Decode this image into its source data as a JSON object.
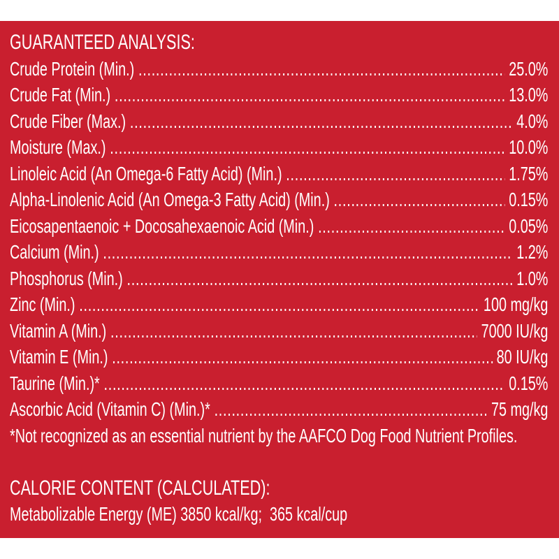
{
  "colors": {
    "panel": "#c91f2f",
    "text": "#ffffff"
  },
  "guaranteed_analysis": {
    "heading": "GUARANTEED ANALYSIS:",
    "rows": [
      {
        "label": "Crude Protein (Min.)",
        "value": "25.0%"
      },
      {
        "label": "Crude Fat (Min.)",
        "value": "13.0%"
      },
      {
        "label": "Crude Fiber (Max.)",
        "value": "4.0%"
      },
      {
        "label": "Moisture (Max.)",
        "value": "10.0%"
      },
      {
        "label": "Linoleic Acid (An Omega-6 Fatty Acid) (Min.)",
        "value": "1.75%"
      },
      {
        "label": "Alpha-Linolenic Acid (An Omega-3 Fatty Acid) (Min.)",
        "value": "0.15%"
      },
      {
        "label": "Eicosapentaenoic + Docosahexaenoic Acid (Min.)",
        "value": "0.05%"
      },
      {
        "label": "Calcium (Min.)",
        "value": "1.2%"
      },
      {
        "label": "Phosphorus (Min.)",
        "value": "1.0%"
      },
      {
        "label": "Zinc (Min.)",
        "value": "100 mg/kg"
      },
      {
        "label": "Vitamin A (Min.)",
        "value": "7000 IU/kg"
      },
      {
        "label": "Vitamin E (Min.)",
        "value": "80 IU/kg"
      },
      {
        "label": "Taurine (Min.)*",
        "value": "0.15%"
      },
      {
        "label": "Ascorbic Acid (Vitamin C) (Min.)*",
        "value": "75 mg/kg"
      }
    ],
    "footnote": "*Not recognized as an essential nutrient by the AAFCO Dog Food Nutrient Profiles."
  },
  "calorie_content": {
    "heading": "CALORIE CONTENT (CALCULATED):",
    "text": "Metabolizable Energy (ME) 3850 kcal/kg;  365 kcal/cup"
  }
}
